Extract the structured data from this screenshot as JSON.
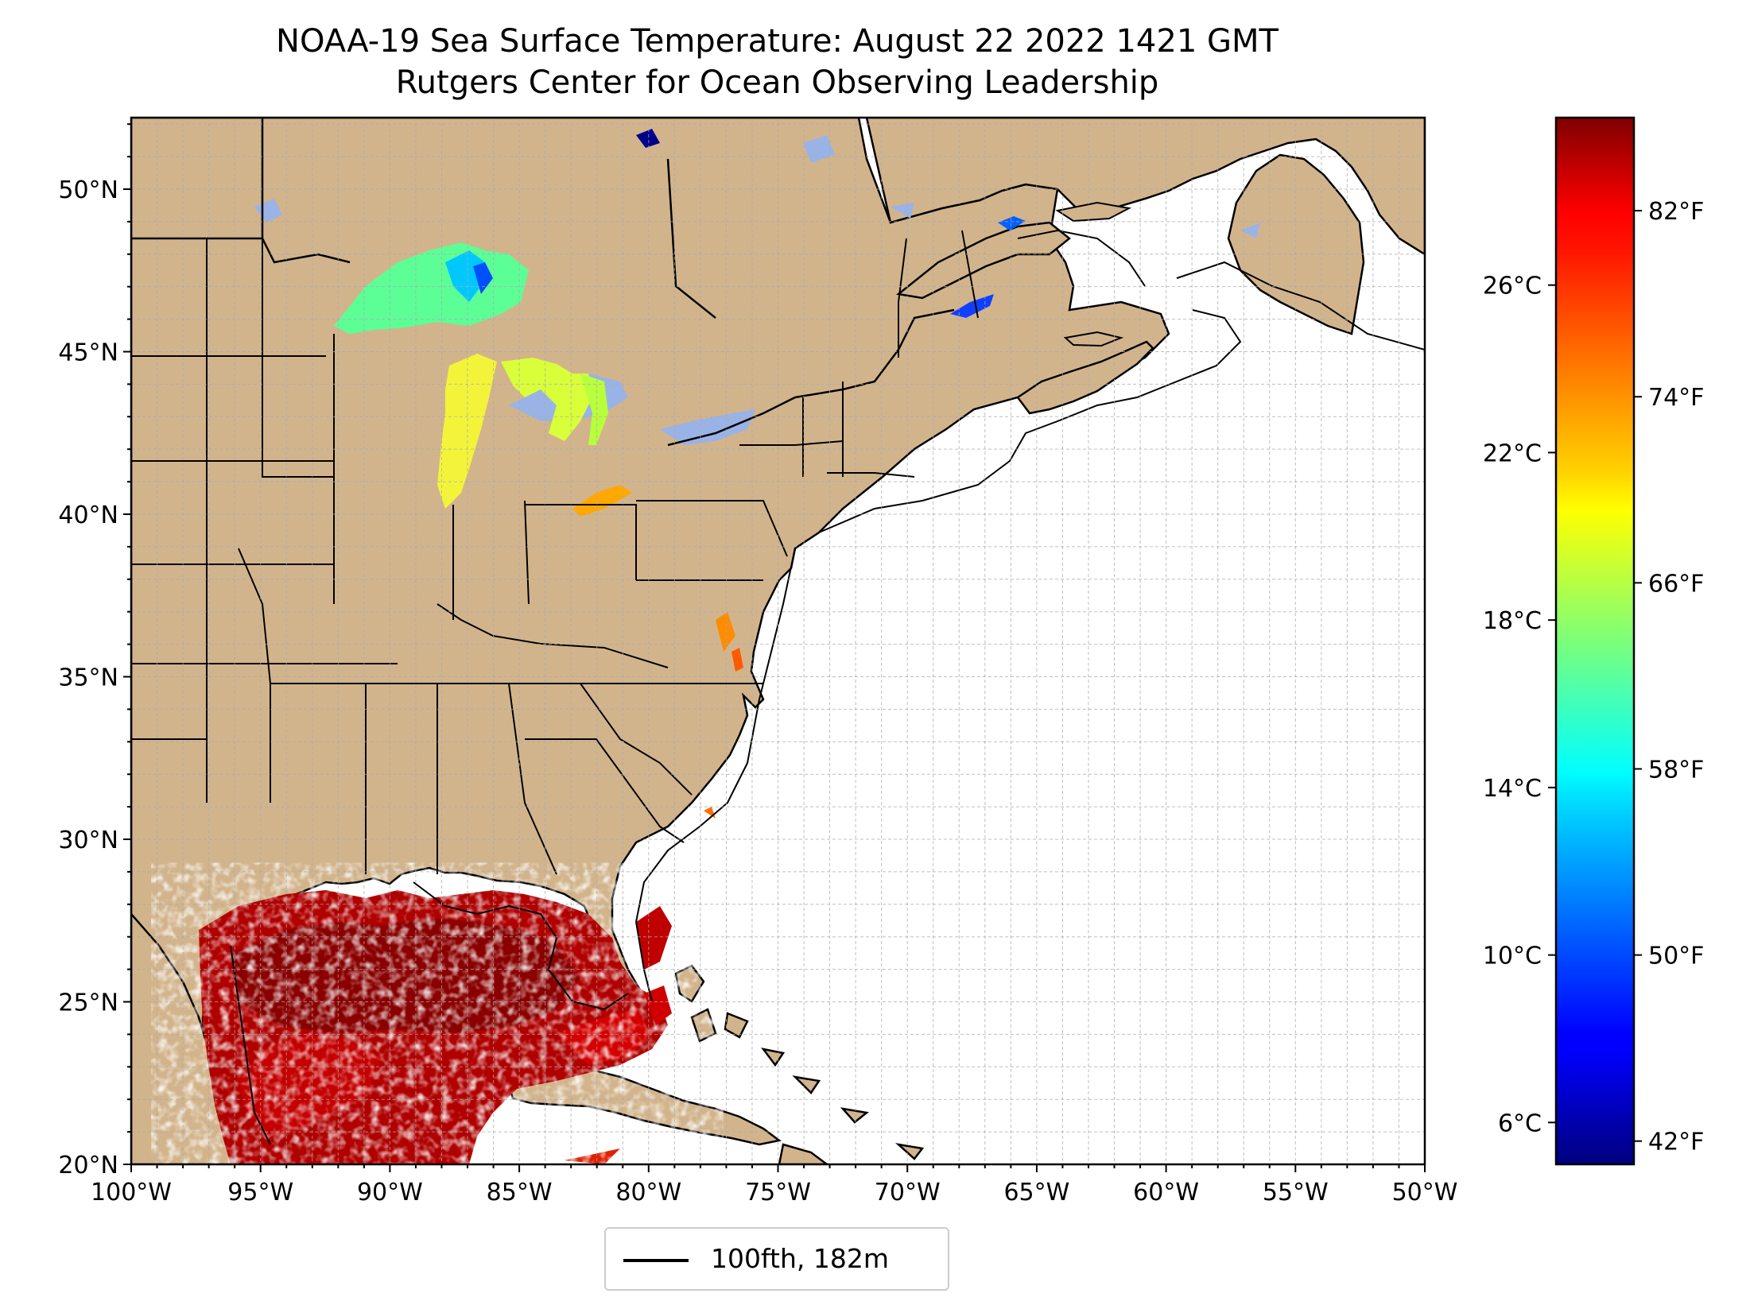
{
  "title": "NOAA-19 Sea Surface Temperature: August 22 2022 1421 GMT",
  "subtitle": "Rutgers Center for Ocean Observing Leadership",
  "map": {
    "lon_range": [
      -100,
      -50
    ],
    "lat_range": [
      20,
      52.2
    ],
    "lon_ticks": [
      "100°W",
      "95°W",
      "90°W",
      "85°W",
      "80°W",
      "75°W",
      "70°W",
      "65°W",
      "60°W",
      "55°W",
      "50°W"
    ],
    "lat_ticks": [
      "20°N",
      "25°N",
      "30°N",
      "35°N",
      "40°N",
      "45°N",
      "50°N"
    ],
    "lat_tick_values": [
      20,
      25,
      30,
      35,
      40,
      45,
      50
    ],
    "lon_tick_values": [
      -100,
      -95,
      -90,
      -85,
      -80,
      -75,
      -70,
      -65,
      -60,
      -55,
      -50
    ],
    "grid": true,
    "colors": {
      "land": "#d2b48c",
      "ocean": "#ffffff",
      "lakes": "#99b3e6",
      "grid": "#aaaaaa"
    }
  },
  "colorbar": {
    "colormap": "jet",
    "fahrenheit_ticks": [
      "82°F",
      "74°F",
      "66°F",
      "58°F",
      "50°F",
      "42°F"
    ],
    "fahrenheit_values": [
      82,
      74,
      66,
      58,
      50,
      42
    ],
    "celsius_ticks": [
      "26°C",
      "22°C",
      "18°C",
      "14°C",
      "10°C",
      "6°C"
    ],
    "celsius_values": [
      26,
      22,
      18,
      14,
      10,
      6
    ],
    "range_f": [
      41,
      86
    ]
  },
  "legend": {
    "label": "100fth, 182m",
    "placement": "bottom-center"
  }
}
